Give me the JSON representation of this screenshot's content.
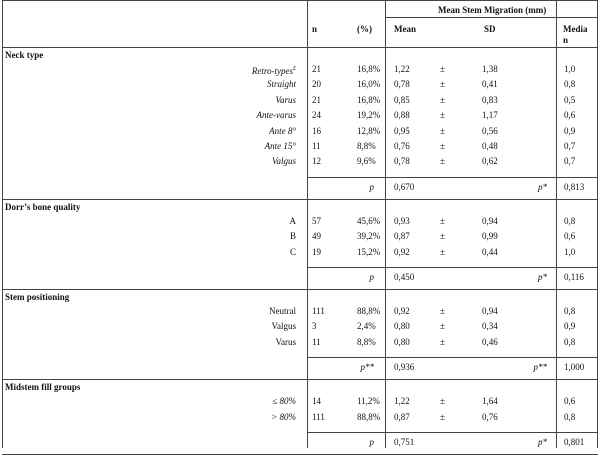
{
  "header": {
    "group_title": "Mean Stem Migration (mm)",
    "n": "n",
    "pct": "(%)",
    "mean": "Mean",
    "sd": "SD",
    "median_line1": "Media",
    "median_line2": "n"
  },
  "sections": [
    {
      "title": "Neck type",
      "label_style": "italic",
      "rows": [
        {
          "label": "Retro-types",
          "sup": "£",
          "n": "21",
          "pct": "16,8%",
          "mean": "1,22",
          "pm": "±",
          "sd": "1,38",
          "median": "1,0"
        },
        {
          "label": "Straight",
          "sup": "",
          "n": "20",
          "pct": "16,0%",
          "mean": "0,78",
          "pm": "±",
          "sd": "0,41",
          "median": "0,8"
        },
        {
          "label": "Varus",
          "sup": "",
          "n": "21",
          "pct": "16,8%",
          "mean": "0,85",
          "pm": "±",
          "sd": "0,83",
          "median": "0,5"
        },
        {
          "label": "Ante-varus",
          "sup": "",
          "n": "24",
          "pct": "19,2%",
          "mean": "0,88",
          "pm": "±",
          "sd": "1,17",
          "median": "0,6"
        },
        {
          "label": "Ante 8°",
          "sup": "",
          "n": "16",
          "pct": "12,8%",
          "mean": "0,95",
          "pm": "±",
          "sd": "0,56",
          "median": "0,9"
        },
        {
          "label": "Ante 15°",
          "sup": "",
          "n": "11",
          "pct": "8,8%",
          "mean": "0,76",
          "pm": "±",
          "sd": "0,48",
          "median": "0,7"
        },
        {
          "label": "Valgus",
          "sup": "",
          "n": "12",
          "pct": "9,6%",
          "mean": "0,78",
          "pm": "±",
          "sd": "0,62",
          "median": "0,7"
        }
      ],
      "p_label": "p",
      "p_value": "0,670",
      "p2_label": "p*",
      "p2_value": "0,813"
    },
    {
      "title": "Dorr’s bone quality",
      "label_style": "normal",
      "rows": [
        {
          "label": "A",
          "sup": "",
          "n": "57",
          "pct": "45,6%",
          "mean": "0,93",
          "pm": "±",
          "sd": "0,94",
          "median": "0,8"
        },
        {
          "label": "B",
          "sup": "",
          "n": "49",
          "pct": "39,2%",
          "mean": "0,87",
          "pm": "±",
          "sd": "0,99",
          "median": "0,6"
        },
        {
          "label": "C",
          "sup": "",
          "n": "19",
          "pct": "15,2%",
          "mean": "0,92",
          "pm": "±",
          "sd": "0,44",
          "median": "1,0"
        }
      ],
      "p_label": "p",
      "p_value": "0,450",
      "p2_label": "p*",
      "p2_value": "0,116"
    },
    {
      "title": "Stem positioning",
      "label_style": "normal",
      "rows": [
        {
          "label": "Neutral",
          "sup": "",
          "n": "111",
          "pct": "88,8%",
          "mean": "0,92",
          "pm": "±",
          "sd": "0,94",
          "median": "0,8"
        },
        {
          "label": "Valgus",
          "sup": "",
          "n": "3",
          "pct": "2,4%",
          "mean": "0,80",
          "pm": "±",
          "sd": "0,34",
          "median": "0,9"
        },
        {
          "label": "Varus",
          "sup": "",
          "n": "11",
          "pct": "8,8%",
          "mean": "0,80",
          "pm": "±",
          "sd": "0,46",
          "median": "0,8"
        }
      ],
      "p_label": "p**",
      "p_value": "0,936",
      "p2_label": "p**",
      "p2_value": "1,000"
    },
    {
      "title": "Midstem fill groups",
      "label_style": "italic",
      "rows": [
        {
          "label": "≤ 80%",
          "sup": "",
          "n": "14",
          "pct": "11,2%",
          "mean": "1,22",
          "pm": "±",
          "sd": "1,64",
          "median": "0,6"
        },
        {
          "label": "> 80%",
          "sup": "",
          "n": "111",
          "pct": "88,8%",
          "mean": "0,87",
          "pm": "±",
          "sd": "0,76",
          "median": "0,8"
        }
      ],
      "p_label": "p",
      "p_value": "0,751",
      "p2_label": "p*",
      "p2_value": "0,801"
    }
  ]
}
